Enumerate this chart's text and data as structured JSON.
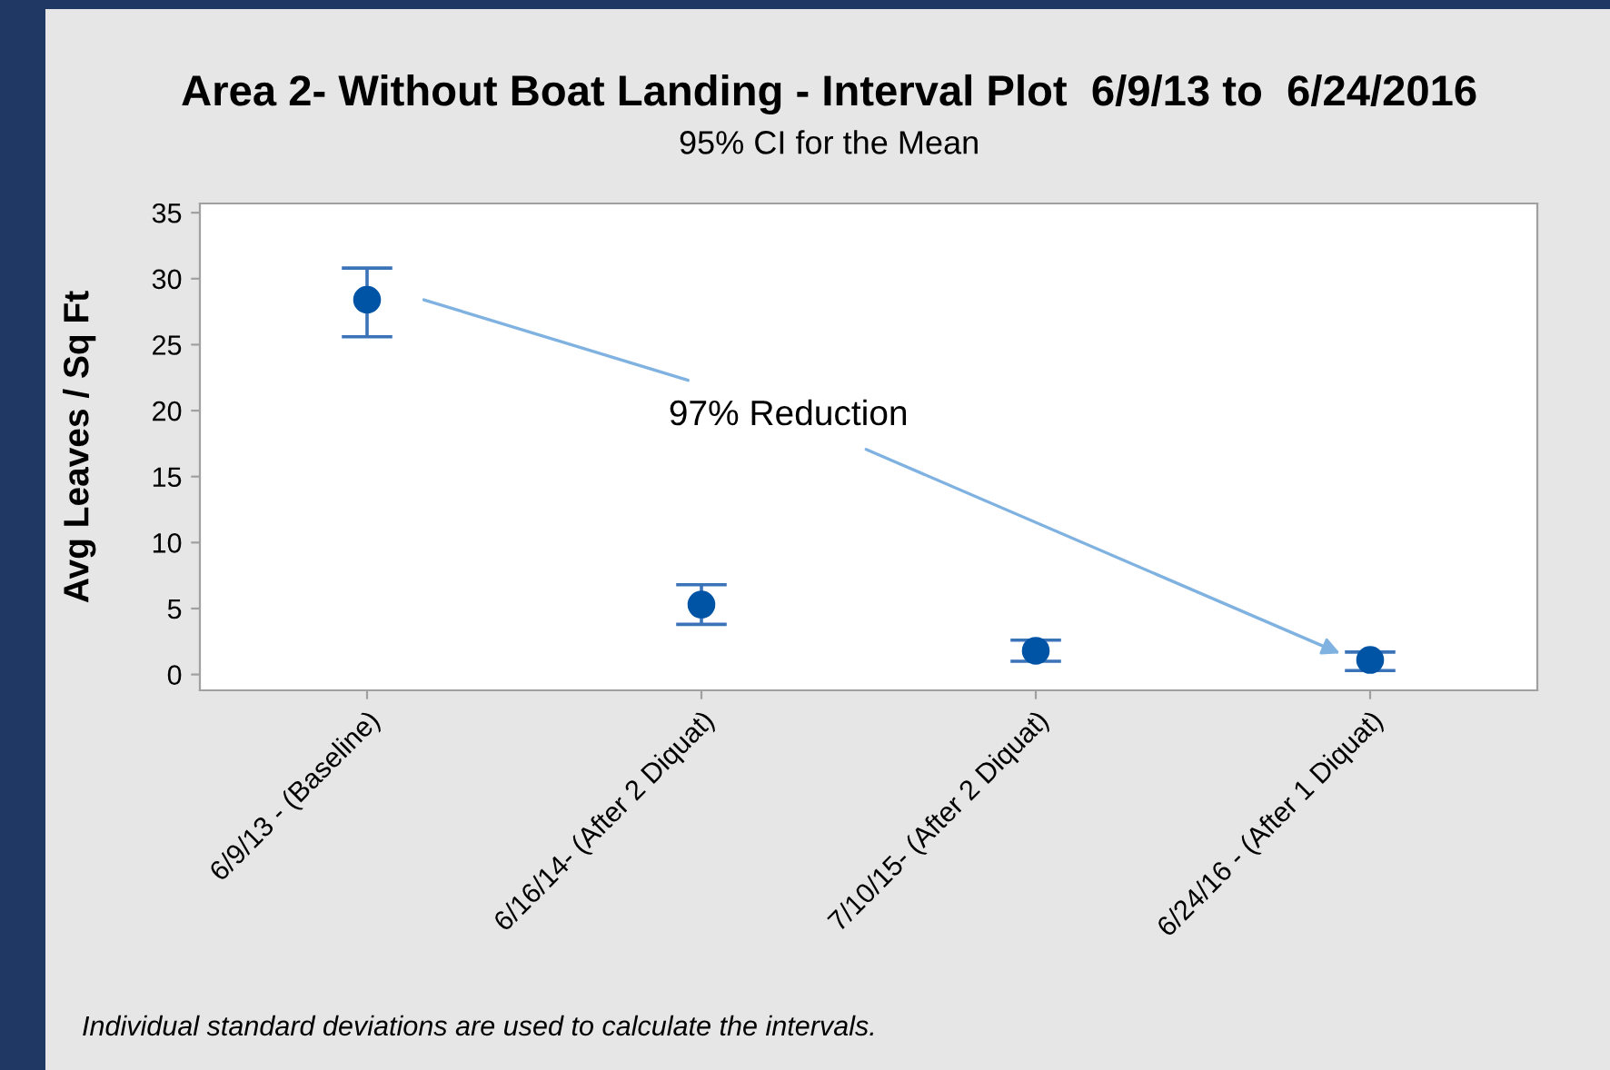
{
  "chart_data": {
    "type": "scatter",
    "title": "Area 2- Without Boat Landing - Interval Plot  6/9/13 to  6/24/2016",
    "subtitle": "95% CI for the Mean",
    "ylabel": "Avg Leaves / Sq Ft",
    "categories": [
      "6/9/13 - (Baseline)",
      "6/16/14- (After 2 Diquat)",
      "7/10/15- (After 2 Diquat)",
      "6/24/16 - (After 1 Diquat)"
    ],
    "series": [
      {
        "color": "#0054a6",
        "values": [
          28.4,
          5.3,
          1.8,
          1.1
        ],
        "errors": [
          [
            25.6,
            30.8
          ],
          [
            3.8,
            6.8
          ],
          [
            1.0,
            2.6
          ],
          [
            0.3,
            1.7
          ]
        ]
      }
    ],
    "marker": "circle",
    "ylim": [
      -1.2,
      35.7
    ],
    "yticks": [
      0,
      5,
      10,
      15,
      20,
      25,
      30,
      35
    ],
    "grid": false,
    "legend": false,
    "annotations": [
      "97% Reduction",
      "Individual standard deviations are used to calculate the intervals."
    ]
  }
}
